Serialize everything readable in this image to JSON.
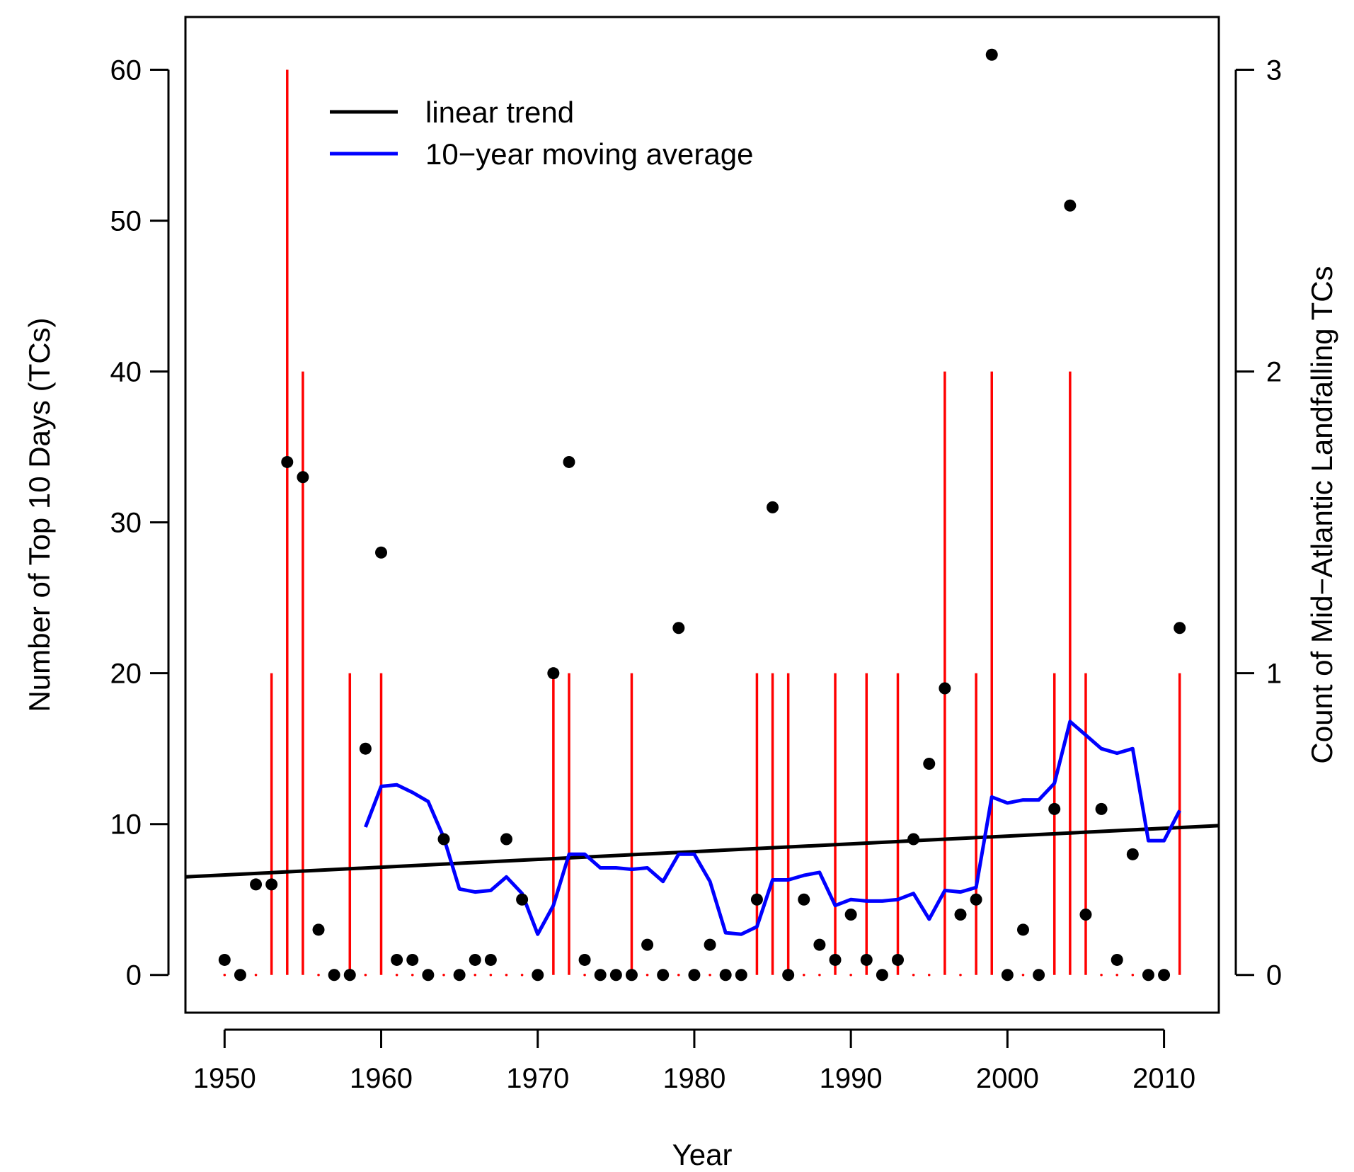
{
  "chart_data": {
    "type": "scatter",
    "xlabel": "Year",
    "ylabel": "Number of Top 10 Days (TCs)",
    "ylabel_right": "Count of Mid−Atlantic Landfalling TCs",
    "xlim": [
      1947.5,
      2013.5
    ],
    "ylim": [
      -2.5,
      63.5
    ],
    "ylim_right": [
      -0.125,
      3.175
    ],
    "x_ticks": [
      1950,
      1960,
      1970,
      1980,
      1990,
      2000,
      2010
    ],
    "x_tick_labels": [
      "1950",
      "1960",
      "1970",
      "1980",
      "1990",
      "2000",
      "2010"
    ],
    "y_ticks": [
      0,
      10,
      20,
      30,
      40,
      50,
      60
    ],
    "y_tick_labels": [
      "0",
      "10",
      "20",
      "30",
      "40",
      "50",
      "60"
    ],
    "y_right_ticks": [
      0,
      1,
      2,
      3
    ],
    "y_right_tick_labels": [
      "0",
      "1",
      "2",
      "3"
    ],
    "colors": {
      "points": "#000000",
      "trend": "#000000",
      "moving_average": "#0000ff",
      "landfall": "#ff0000",
      "right_axis_label": "#ff0000"
    },
    "legend": {
      "position": "top-left",
      "entries": [
        {
          "label": "linear trend",
          "color": "#000000"
        },
        {
          "label": "10−year moving average",
          "color": "#0000ff"
        }
      ]
    },
    "top10_days": {
      "name": "Number of Top 10 Days (TCs)",
      "years": [
        1950,
        1951,
        1952,
        1953,
        1954,
        1955,
        1956,
        1957,
        1958,
        1959,
        1960,
        1961,
        1962,
        1963,
        1964,
        1965,
        1966,
        1967,
        1968,
        1969,
        1970,
        1971,
        1972,
        1973,
        1974,
        1975,
        1976,
        1977,
        1978,
        1979,
        1980,
        1981,
        1982,
        1983,
        1984,
        1985,
        1986,
        1987,
        1988,
        1989,
        1990,
        1991,
        1992,
        1993,
        1994,
        1995,
        1996,
        1997,
        1998,
        1999,
        2000,
        2001,
        2002,
        2003,
        2004,
        2005,
        2006,
        2007,
        2008,
        2009,
        2010,
        2011
      ],
      "values": [
        1,
        0,
        6,
        6,
        34,
        33,
        3,
        0,
        0,
        15,
        28,
        1,
        1,
        0,
        9,
        0,
        1,
        1,
        9,
        5,
        0,
        20,
        34,
        1,
        0,
        0,
        0,
        2,
        0,
        23,
        0,
        2,
        0,
        0,
        5,
        31,
        0,
        5,
        2,
        1,
        4,
        1,
        0,
        1,
        9,
        14,
        19,
        4,
        5,
        61,
        0,
        3,
        0,
        11,
        51,
        4,
        11,
        1,
        8,
        0,
        0,
        23
      ]
    },
    "linear_trend": {
      "name": "linear trend",
      "x": [
        1947.5,
        2013.5
      ],
      "y": [
        6.5,
        9.9
      ]
    },
    "moving_average": {
      "name": "10−year moving average",
      "years": [
        1959,
        1960,
        1961,
        1962,
        1963,
        1964,
        1965,
        1966,
        1967,
        1968,
        1969,
        1970,
        1971,
        1972,
        1973,
        1974,
        1975,
        1976,
        1977,
        1978,
        1979,
        1980,
        1981,
        1982,
        1983,
        1984,
        1985,
        1986,
        1987,
        1988,
        1989,
        1990,
        1991,
        1992,
        1993,
        1994,
        1995,
        1996,
        1997,
        1998,
        1999,
        2000,
        2001,
        2002,
        2003,
        2004,
        2005,
        2006,
        2007,
        2008,
        2009,
        2010,
        2011
      ],
      "values": [
        9.8,
        12.5,
        12.6,
        12.1,
        11.5,
        9.1,
        5.7,
        5.5,
        5.6,
        6.5,
        5.4,
        2.7,
        4.6,
        8.0,
        8.0,
        7.1,
        7.1,
        7.0,
        7.1,
        6.2,
        8.0,
        8.0,
        6.2,
        2.8,
        2.7,
        3.2,
        6.3,
        6.3,
        6.6,
        6.8,
        4.6,
        5.0,
        4.9,
        4.9,
        5.0,
        5.4,
        3.7,
        5.6,
        5.5,
        5.8,
        11.8,
        11.4,
        11.6,
        11.6,
        12.7,
        16.8,
        15.9,
        15.0,
        14.7,
        15.0,
        8.9,
        8.9,
        10.9
      ]
    },
    "landfalling_tcs": {
      "name": "Count of Mid−Atlantic Landfalling TCs",
      "years": [
        1950,
        1951,
        1952,
        1953,
        1954,
        1955,
        1956,
        1957,
        1958,
        1959,
        1960,
        1961,
        1962,
        1963,
        1964,
        1965,
        1966,
        1967,
        1968,
        1969,
        1970,
        1971,
        1972,
        1973,
        1974,
        1975,
        1976,
        1977,
        1978,
        1979,
        1980,
        1981,
        1982,
        1983,
        1984,
        1985,
        1986,
        1987,
        1988,
        1989,
        1990,
        1991,
        1992,
        1993,
        1994,
        1995,
        1996,
        1997,
        1998,
        1999,
        2000,
        2001,
        2002,
        2003,
        2004,
        2005,
        2006,
        2007,
        2008,
        2009,
        2010,
        2011
      ],
      "counts": [
        0,
        0,
        0,
        1,
        3,
        2,
        0,
        0,
        1,
        0,
        1,
        0,
        0,
        0,
        0,
        0,
        0,
        0,
        0,
        0,
        0,
        1,
        1,
        0,
        0,
        0,
        1,
        0,
        0,
        0,
        0,
        0,
        0,
        0,
        1,
        1,
        1,
        0,
        0,
        1,
        0,
        1,
        0,
        1,
        0,
        0,
        2,
        0,
        1,
        2,
        0,
        0,
        0,
        1,
        2,
        1,
        0,
        0,
        0,
        0,
        0,
        1
      ]
    }
  }
}
